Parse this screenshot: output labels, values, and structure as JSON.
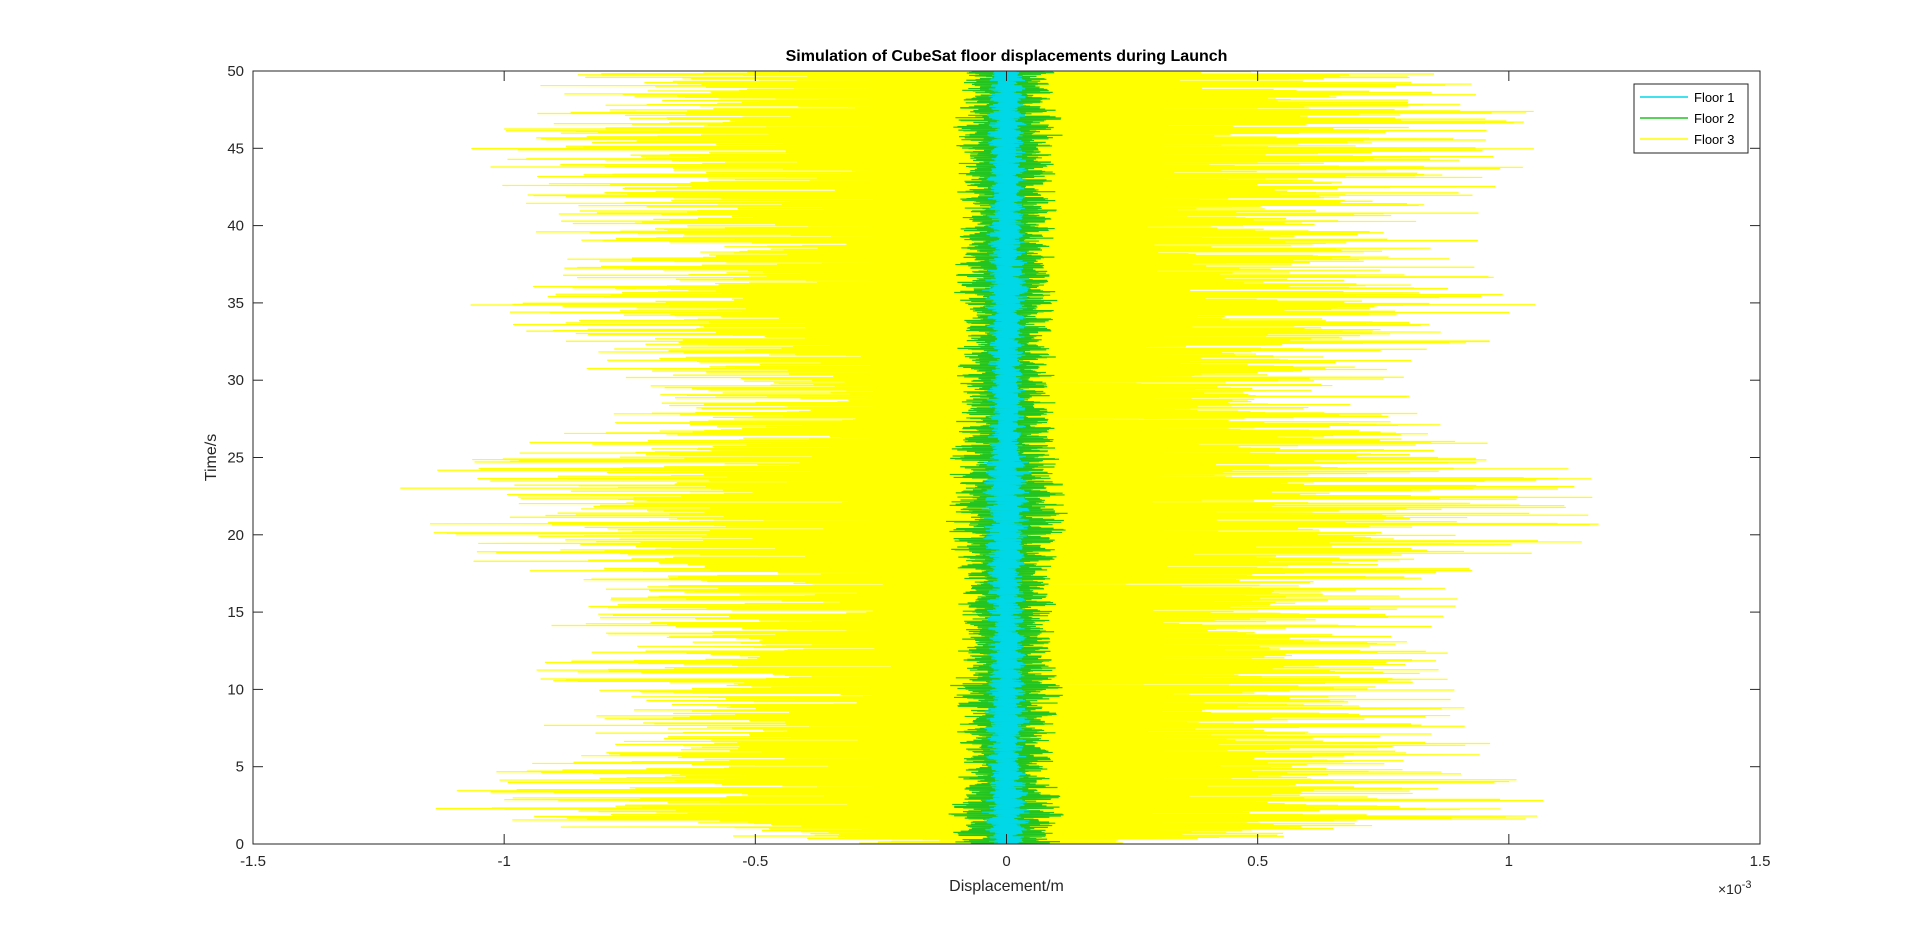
{
  "chart_data": {
    "type": "line",
    "title": "Simulation of CubeSat floor displacements during Launch",
    "xlabel": "Displacement/m",
    "ylabel": "Time/s",
    "xlim": [
      -0.0015,
      0.0015
    ],
    "ylim": [
      0,
      50
    ],
    "x_ticks": [
      -1.5,
      -1,
      -0.5,
      0,
      0.5,
      1,
      1.5
    ],
    "x_tick_labels": [
      "-1.5",
      "-1",
      "-0.5",
      "0",
      "0.5",
      "1",
      "1.5"
    ],
    "x_exponent_base": "×10",
    "x_exponent_power": "-3",
    "y_ticks": [
      0,
      5,
      10,
      15,
      20,
      25,
      30,
      35,
      40,
      45,
      50
    ],
    "y_tick_labels": [
      "0",
      "5",
      "10",
      "15",
      "20",
      "25",
      "30",
      "35",
      "40",
      "45",
      "50"
    ],
    "grid": false,
    "legend_position": "top-right",
    "series": [
      {
        "name": "Floor 1",
        "color": "#00d8e8",
        "envelope_t": [
          0,
          2,
          4,
          6,
          8,
          10,
          12,
          14,
          16,
          18,
          20,
          22,
          24,
          26,
          28,
          30,
          32,
          34,
          36,
          38,
          40,
          42,
          44,
          46,
          48,
          50
        ],
        "envelope_x": [
          4e-05,
          5e-05,
          4e-05,
          4e-05,
          5e-05,
          4e-05,
          4e-05,
          4e-05,
          4e-05,
          4e-05,
          5e-05,
          5e-05,
          5e-05,
          4e-05,
          4e-05,
          4e-05,
          4e-05,
          4e-05,
          5e-05,
          4e-05,
          4e-05,
          4e-05,
          4e-05,
          4e-05,
          4e-05,
          4e-05
        ]
      },
      {
        "name": "Floor 2",
        "color": "#22c422",
        "envelope_t": [
          0,
          2,
          4,
          6,
          8,
          10,
          12,
          14,
          16,
          18,
          20,
          22,
          24,
          26,
          28,
          30,
          32,
          34,
          36,
          38,
          40,
          42,
          44,
          46,
          48,
          50
        ],
        "envelope_x": [
          0.00011,
          0.00012,
          0.0001,
          0.0001,
          0.0001,
          0.00012,
          0.0001,
          0.0001,
          0.0001,
          0.0001,
          0.00012,
          0.00013,
          0.00012,
          0.00011,
          0.0001,
          0.0001,
          0.0001,
          0.0001,
          0.00011,
          0.0001,
          0.0001,
          0.0001,
          0.0001,
          0.00012,
          0.0001,
          0.0001
        ]
      },
      {
        "name": "Floor 3",
        "color": "#ffff00",
        "envelope_t": [
          0,
          1.5,
          3.5,
          5.5,
          7.5,
          9,
          11,
          13,
          15,
          17,
          19.5,
          21.5,
          23.5,
          25.5,
          27.5,
          29.5,
          31.5,
          33,
          35,
          37,
          39,
          41,
          43,
          45.5,
          47.5,
          49.5
        ],
        "envelope_x": [
          0.0003,
          0.00115,
          0.00112,
          0.001,
          0.00098,
          0.00093,
          0.00098,
          0.0009,
          0.00098,
          0.0009,
          0.00125,
          0.00118,
          0.00125,
          0.00108,
          0.00085,
          0.00082,
          0.00085,
          0.00105,
          0.00112,
          0.00095,
          0.00095,
          0.00095,
          0.00105,
          0.00108,
          0.00108,
          0.00093
        ]
      }
    ]
  }
}
